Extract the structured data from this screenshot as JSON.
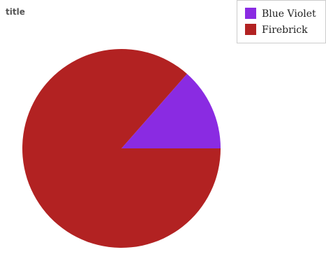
{
  "chart_data": {
    "type": "pie",
    "title": "title",
    "slices": [
      {
        "label": "Blue Violet",
        "value": 13.5,
        "color": "#8a2be2"
      },
      {
        "label": "Firebrick",
        "value": 86.5,
        "color": "#b22222"
      }
    ],
    "legend_position": "top-right"
  }
}
